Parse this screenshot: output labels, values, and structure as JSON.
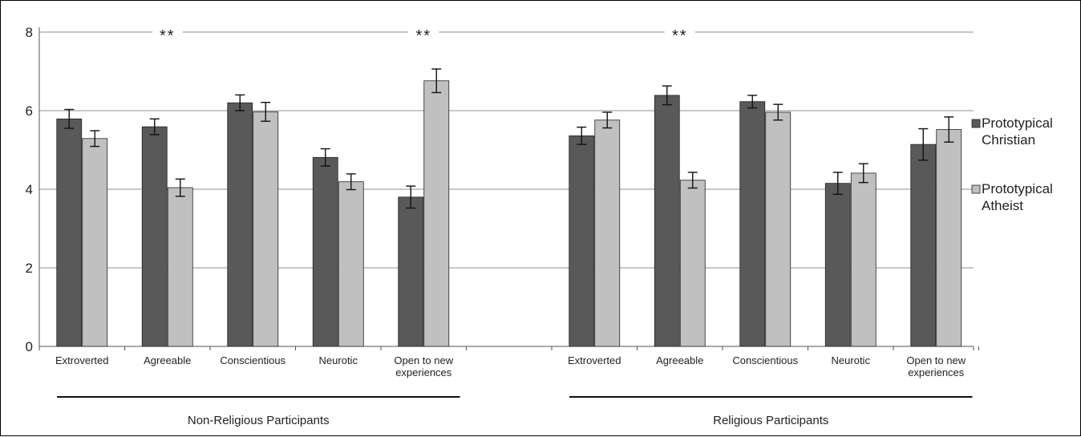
{
  "chart_data": {
    "type": "bar",
    "ylim": [
      0,
      8
    ],
    "yticks": [
      0,
      2,
      4,
      6,
      8
    ],
    "grid": true,
    "legend_position": "right",
    "colors": {
      "christian": "#595959",
      "atheist": "#c0c0c0",
      "grid": "#a6a6a6"
    },
    "series": [
      {
        "name": "Prototypical Christian",
        "legend_lines": [
          "Prototypical",
          "Christian"
        ]
      },
      {
        "name": "Prototypical Atheist",
        "legend_lines": [
          "Prototypical",
          "Atheist"
        ]
      }
    ],
    "groups": [
      {
        "label": "Non-Religious Participants",
        "categories": [
          {
            "label": [
              "Extroverted"
            ],
            "values": [
              5.79,
              5.29
            ],
            "errors": [
              0.24,
              0.2
            ],
            "sig": ""
          },
          {
            "label": [
              "Agreeable"
            ],
            "values": [
              5.59,
              4.04
            ],
            "errors": [
              0.2,
              0.22
            ],
            "sig": "**"
          },
          {
            "label": [
              "Conscientious"
            ],
            "values": [
              6.2,
              5.97
            ],
            "errors": [
              0.2,
              0.24
            ],
            "sig": ""
          },
          {
            "label": [
              "Neurotic"
            ],
            "values": [
              4.81,
              4.19
            ],
            "errors": [
              0.22,
              0.2
            ],
            "sig": ""
          },
          {
            "label": [
              "Open to new",
              "experiences"
            ],
            "values": [
              3.8,
              6.76
            ],
            "errors": [
              0.28,
              0.3
            ],
            "sig": "**"
          }
        ]
      },
      {
        "label": "Religious Participants",
        "categories": [
          {
            "label": [
              "Extroverted"
            ],
            "values": [
              5.36,
              5.76
            ],
            "errors": [
              0.22,
              0.2
            ],
            "sig": ""
          },
          {
            "label": [
              "Agreeable"
            ],
            "values": [
              6.39,
              4.23
            ],
            "errors": [
              0.24,
              0.2
            ],
            "sig": "**"
          },
          {
            "label": [
              "Conscientious"
            ],
            "values": [
              6.23,
              5.96
            ],
            "errors": [
              0.16,
              0.2
            ],
            "sig": ""
          },
          {
            "label": [
              "Neurotic"
            ],
            "values": [
              4.15,
              4.41
            ],
            "errors": [
              0.28,
              0.24
            ],
            "sig": ""
          },
          {
            "label": [
              "Open to new",
              "experiences"
            ],
            "values": [
              5.14,
              5.52
            ],
            "errors": [
              0.4,
              0.32
            ],
            "sig": ""
          }
        ]
      }
    ]
  }
}
